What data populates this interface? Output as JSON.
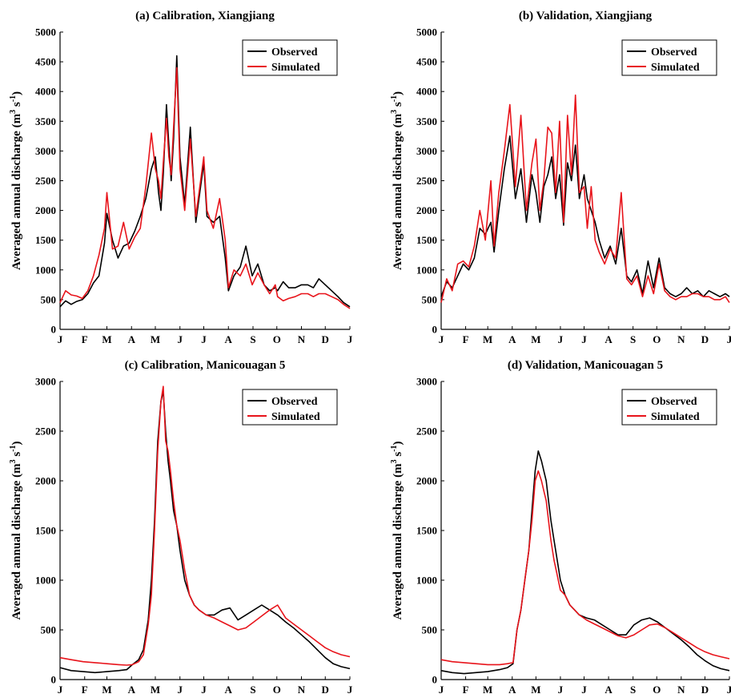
{
  "colors": {
    "observed": "#000000",
    "simulated": "#e8141b",
    "axis": "#000000"
  },
  "chart_data": [
    {
      "type": "line",
      "title": "(a) Calibration, Xiangjiang",
      "ylabel": "Averaged annual discharge",
      "ylabel_unit": {
        "base1": "(m",
        "exp1": "3",
        "base2": " s",
        "exp2": "-1",
        "close": ")"
      },
      "ylim": [
        0,
        5000
      ],
      "yticks": [
        "0",
        "500",
        "1000",
        "1500",
        "2000",
        "2500",
        "3000",
        "3500",
        "4000",
        "4500",
        "5000"
      ],
      "xlim": [
        1,
        366
      ],
      "xticks": [
        "J",
        "F",
        "M",
        "A",
        "M",
        "J",
        "J",
        "A",
        "S",
        "O",
        "N",
        "D",
        "J"
      ],
      "legend": {
        "position": "top-right",
        "entries": [
          "Observed",
          "Simulated"
        ]
      },
      "series": [
        {
          "name": "Observed",
          "x": [
            1,
            8,
            15,
            22,
            29,
            36,
            43,
            50,
            57,
            60,
            67,
            74,
            81,
            88,
            95,
            102,
            109,
            116,
            121,
            125,
            128,
            131,
            135,
            138,
            141,
            144,
            148,
            152,
            158,
            165,
            172,
            182,
            186,
            194,
            202,
            209,
            213,
            220,
            228,
            235,
            243,
            250,
            258,
            265,
            272,
            275,
            282,
            289,
            297,
            305,
            313,
            320,
            327,
            335,
            343,
            351,
            358,
            366
          ],
          "values": [
            380,
            480,
            420,
            470,
            500,
            600,
            780,
            900,
            1450,
            1950,
            1500,
            1200,
            1400,
            1450,
            1650,
            1900,
            2200,
            2700,
            2900,
            2300,
            2000,
            2600,
            3780,
            3100,
            2500,
            3200,
            4600,
            2900,
            2100,
            3400,
            1800,
            2800,
            1900,
            1800,
            1900,
            1200,
            650,
            900,
            1050,
            1400,
            900,
            1100,
            750,
            650,
            700,
            650,
            800,
            700,
            700,
            750,
            750,
            700,
            850,
            750,
            650,
            550,
            450,
            380
          ]
        },
        {
          "name": "Simulated",
          "x": [
            1,
            8,
            15,
            22,
            29,
            36,
            43,
            50,
            57,
            60,
            67,
            74,
            81,
            88,
            95,
            102,
            109,
            116,
            121,
            125,
            128,
            131,
            135,
            138,
            141,
            144,
            148,
            152,
            158,
            165,
            172,
            182,
            186,
            194,
            202,
            209,
            213,
            220,
            228,
            235,
            243,
            250,
            258,
            265,
            272,
            275,
            282,
            289,
            297,
            305,
            313,
            320,
            327,
            335,
            343,
            351,
            358,
            366
          ],
          "values": [
            450,
            650,
            580,
            560,
            520,
            650,
            900,
            1250,
            1700,
            2300,
            1350,
            1400,
            1800,
            1350,
            1550,
            1700,
            2400,
            3300,
            2700,
            2500,
            2200,
            2800,
            3550,
            2900,
            2600,
            3400,
            4400,
            2700,
            2000,
            3200,
            1900,
            2900,
            2000,
            1700,
            2200,
            1500,
            700,
            1000,
            900,
            1100,
            750,
            950,
            750,
            600,
            750,
            550,
            480,
            520,
            550,
            600,
            600,
            550,
            600,
            600,
            550,
            500,
            420,
            350
          ]
        }
      ]
    },
    {
      "type": "line",
      "title": "(b) Validation, Xiangjiang",
      "ylabel": "Averaged annual discharge",
      "ylabel_unit": {
        "base1": "(m",
        "exp1": "3",
        "base2": " s",
        "exp2": "-1",
        "close": ")"
      },
      "ylim": [
        0,
        5000
      ],
      "yticks": [
        "0",
        "500",
        "1000",
        "1500",
        "2000",
        "2500",
        "3000",
        "3500",
        "4000",
        "4500",
        "5000"
      ],
      "xlim": [
        1,
        366
      ],
      "xticks": [
        "J",
        "F",
        "M",
        "A",
        "M",
        "J",
        "J",
        "A",
        "S",
        "O",
        "N",
        "D",
        "J"
      ],
      "legend": {
        "position": "top-right",
        "entries": [
          "Observed",
          "Simulated"
        ]
      },
      "series": [
        {
          "name": "Observed",
          "x": [
            1,
            8,
            15,
            22,
            29,
            36,
            43,
            50,
            57,
            64,
            68,
            74,
            81,
            88,
            95,
            102,
            109,
            116,
            121,
            126,
            131,
            136,
            141,
            146,
            151,
            156,
            161,
            166,
            171,
            176,
            182,
            186,
            191,
            196,
            201,
            208,
            215,
            222,
            229,
            236,
            242,
            249,
            256,
            263,
            270,
            277,
            284,
            291,
            298,
            305,
            312,
            319,
            326,
            333,
            340,
            347,
            354,
            361,
            366
          ],
          "values": [
            550,
            800,
            700,
            900,
            1100,
            1000,
            1200,
            1700,
            1600,
            1800,
            1300,
            2000,
            2700,
            3250,
            2200,
            2700,
            1800,
            2600,
            2300,
            1800,
            2400,
            2600,
            2900,
            2200,
            2600,
            1750,
            2800,
            2500,
            3100,
            2200,
            2600,
            2200,
            2000,
            1800,
            1500,
            1200,
            1400,
            1100,
            1700,
            900,
            800,
            1000,
            600,
            1150,
            700,
            1200,
            700,
            600,
            550,
            600,
            700,
            600,
            650,
            550,
            650,
            600,
            550,
            600,
            550
          ]
        },
        {
          "name": "Simulated",
          "x": [
            1,
            8,
            15,
            22,
            29,
            36,
            43,
            50,
            57,
            64,
            68,
            74,
            81,
            88,
            95,
            102,
            109,
            116,
            121,
            126,
            131,
            136,
            141,
            146,
            151,
            156,
            161,
            166,
            171,
            176,
            182,
            186,
            191,
            196,
            201,
            208,
            215,
            222,
            229,
            236,
            242,
            249,
            256,
            263,
            270,
            277,
            284,
            291,
            298,
            305,
            312,
            319,
            326,
            333,
            340,
            347,
            354,
            361,
            366
          ],
          "values": [
            450,
            850,
            650,
            1100,
            1150,
            1050,
            1400,
            2000,
            1500,
            2500,
            1400,
            2300,
            3000,
            3780,
            2400,
            3600,
            2000,
            2800,
            3200,
            2000,
            2500,
            3400,
            3300,
            2300,
            3500,
            1800,
            3600,
            2600,
            3940,
            2300,
            2400,
            1700,
            2400,
            1500,
            1300,
            1100,
            1350,
            1200,
            2300,
            850,
            750,
            900,
            550,
            900,
            600,
            1100,
            650,
            550,
            500,
            550,
            550,
            600,
            600,
            550,
            550,
            500,
            500,
            550,
            450
          ]
        }
      ]
    },
    {
      "type": "line",
      "title": "(c) Calibration, Manicouagan 5",
      "ylabel": "Averaged annual discharge",
      "ylabel_unit": {
        "base1": "(m",
        "exp1": "3",
        "base2": " s",
        "exp2": "-1",
        "close": ")"
      },
      "ylim": [
        0,
        3000
      ],
      "yticks": [
        "0",
        "500",
        "1000",
        "1500",
        "2000",
        "2500",
        "3000"
      ],
      "xlim": [
        1,
        366
      ],
      "xticks": [
        "J",
        "F",
        "M",
        "A",
        "M",
        "J",
        "J",
        "A",
        "S",
        "O",
        "N",
        "D",
        "J"
      ],
      "legend": {
        "position": "top-right",
        "entries": [
          "Observed",
          "Simulated"
        ]
      },
      "series": [
        {
          "name": "Observed",
          "x": [
            1,
            15,
            30,
            45,
            60,
            75,
            85,
            92,
            100,
            106,
            112,
            116,
            120,
            124,
            128,
            131,
            134,
            137,
            140,
            144,
            148,
            152,
            158,
            164,
            170,
            176,
            185,
            195,
            205,
            215,
            225,
            235,
            245,
            255,
            265,
            275,
            285,
            295,
            305,
            315,
            325,
            335,
            345,
            355,
            366
          ],
          "values": [
            120,
            90,
            80,
            70,
            80,
            90,
            100,
            150,
            200,
            300,
            600,
            1000,
            1600,
            2400,
            2800,
            2900,
            2500,
            2200,
            2000,
            1700,
            1550,
            1300,
            1000,
            850,
            750,
            700,
            650,
            650,
            700,
            720,
            600,
            650,
            700,
            750,
            700,
            650,
            580,
            520,
            450,
            380,
            300,
            220,
            160,
            130,
            110
          ]
        },
        {
          "name": "Simulated",
          "x": [
            1,
            15,
            30,
            45,
            60,
            75,
            85,
            92,
            100,
            106,
            112,
            116,
            120,
            124,
            128,
            131,
            134,
            137,
            140,
            144,
            148,
            152,
            158,
            164,
            170,
            176,
            185,
            195,
            205,
            215,
            225,
            235,
            245,
            255,
            265,
            275,
            285,
            295,
            305,
            315,
            325,
            335,
            345,
            355,
            366
          ],
          "values": [
            220,
            200,
            180,
            170,
            160,
            150,
            145,
            150,
            180,
            250,
            550,
            850,
            1500,
            2300,
            2800,
            2950,
            2400,
            2300,
            2100,
            1800,
            1550,
            1400,
            1100,
            850,
            750,
            700,
            650,
            620,
            580,
            540,
            500,
            520,
            580,
            640,
            700,
            750,
            620,
            560,
            500,
            440,
            380,
            320,
            280,
            250,
            230
          ]
        }
      ]
    },
    {
      "type": "line",
      "title": "(d) Validation, Manicouagan 5",
      "ylabel": "Averaged annual discharge",
      "ylabel_unit": {
        "base1": "(m",
        "exp1": "3",
        "base2": " s",
        "exp2": "-1",
        "close": ")"
      },
      "ylim": [
        0,
        3000
      ],
      "yticks": [
        "0",
        "500",
        "1000",
        "1500",
        "2000",
        "2500",
        "3000"
      ],
      "xlim": [
        1,
        366
      ],
      "xticks": [
        "J",
        "F",
        "M",
        "A",
        "M",
        "J",
        "J",
        "A",
        "S",
        "O",
        "N",
        "D",
        "J"
      ],
      "legend": {
        "position": "top-right",
        "entries": [
          "Observed",
          "Simulated"
        ]
      },
      "series": [
        {
          "name": "Observed",
          "x": [
            1,
            15,
            30,
            45,
            60,
            75,
            85,
            92,
            97,
            102,
            107,
            112,
            116,
            120,
            124,
            128,
            131,
            134,
            137,
            140,
            144,
            148,
            152,
            158,
            164,
            170,
            176,
            185,
            195,
            205,
            215,
            225,
            235,
            245,
            255,
            265,
            275,
            285,
            295,
            305,
            315,
            325,
            335,
            345,
            355,
            366
          ],
          "values": [
            90,
            70,
            60,
            70,
            80,
            100,
            120,
            160,
            500,
            700,
            1000,
            1300,
            1700,
            2100,
            2300,
            2200,
            2100,
            2000,
            1800,
            1600,
            1400,
            1200,
            1000,
            850,
            750,
            700,
            650,
            620,
            600,
            550,
            500,
            450,
            450,
            550,
            600,
            620,
            580,
            520,
            460,
            400,
            330,
            250,
            190,
            140,
            110,
            90
          ]
        },
        {
          "name": "Simulated",
          "x": [
            1,
            15,
            30,
            45,
            60,
            75,
            85,
            92,
            97,
            102,
            107,
            112,
            116,
            120,
            124,
            128,
            131,
            134,
            137,
            140,
            144,
            148,
            152,
            158,
            164,
            170,
            176,
            185,
            195,
            205,
            215,
            225,
            235,
            245,
            255,
            265,
            275,
            285,
            295,
            305,
            315,
            325,
            335,
            345,
            355,
            366
          ],
          "values": [
            200,
            180,
            170,
            160,
            150,
            150,
            160,
            170,
            500,
            700,
            1000,
            1300,
            1600,
            2000,
            2100,
            2000,
            1900,
            1800,
            1600,
            1400,
            1200,
            1050,
            900,
            850,
            750,
            700,
            650,
            600,
            560,
            520,
            480,
            440,
            420,
            450,
            500,
            550,
            560,
            520,
            470,
            420,
            370,
            320,
            280,
            250,
            230,
            210
          ]
        }
      ]
    }
  ]
}
